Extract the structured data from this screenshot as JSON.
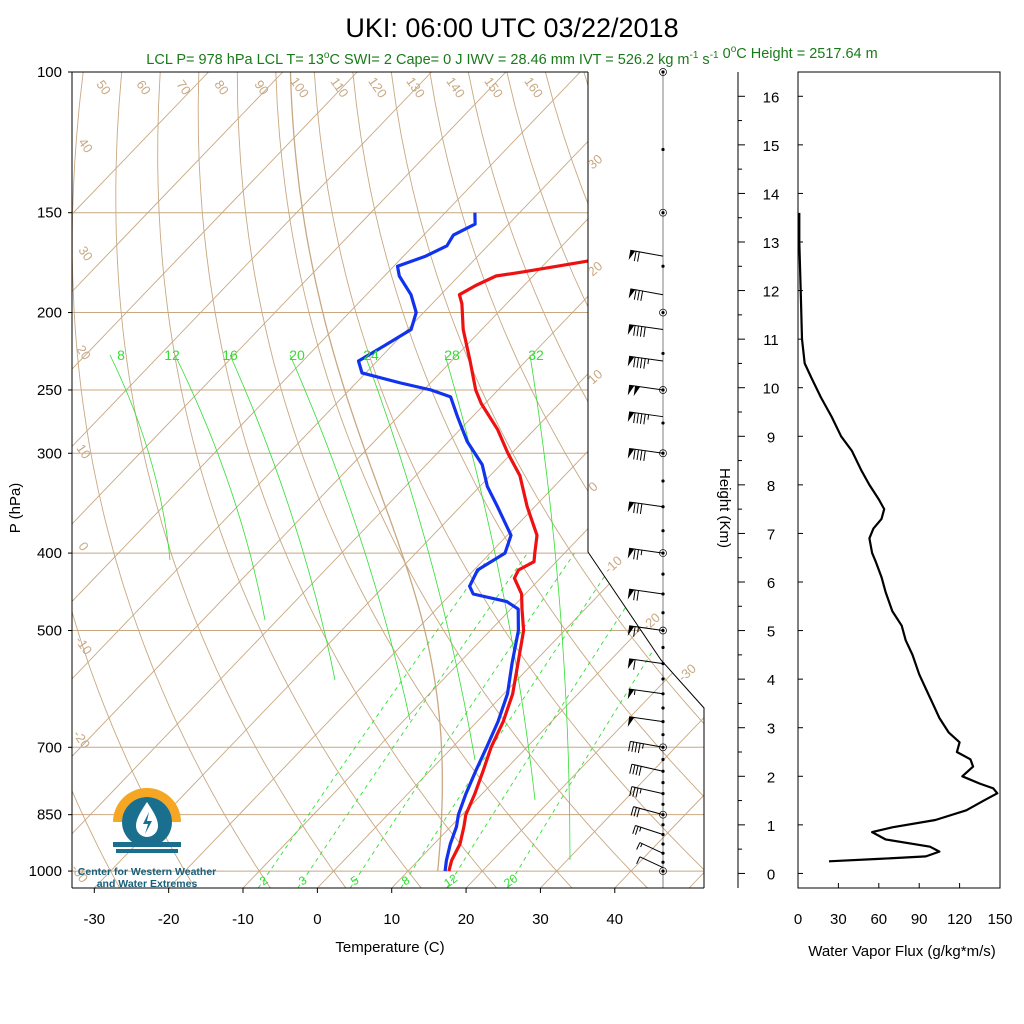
{
  "header": {
    "title": "UKI: 06:00 UTC 03/22/2018",
    "subtitle_parts": [
      {
        "text": "LCL P= 978 hPa"
      },
      {
        "text": "LCL T= 13",
        "sup": "o",
        "after": "C"
      },
      {
        "text": "SWI= 2"
      },
      {
        "text": "Cape= 0 J"
      },
      {
        "text": "IWV = 28.46 mm"
      },
      {
        "text": "IVT = 526.2 kg m",
        "sup": "-1",
        "mid": " s",
        "sup2": "-1"
      },
      {
        "text": "0",
        "sup": "o",
        "after": "C Height = 2517.64 m"
      }
    ]
  },
  "logo": {
    "line1": "Center for Western Weather",
    "line2": "and Water Extremes",
    "colors": {
      "orange": "#f5a623",
      "teal": "#1a6f8f"
    }
  },
  "chart_data": [
    {
      "type": "skew-t",
      "ylabel": "P (hPa)",
      "xlabel": "Temperature (C)",
      "pressure_ticks": [
        100,
        150,
        200,
        250,
        300,
        400,
        500,
        700,
        850,
        1000
      ],
      "temperature_ticks": [
        -30,
        -20,
        -10,
        0,
        10,
        20,
        30,
        40
      ],
      "xlim": [
        -33,
        52
      ],
      "ylim": [
        1050,
        100
      ],
      "dry_adiabat_labels": [
        "50",
        "60",
        "70",
        "80",
        "90",
        "100",
        "110",
        "120",
        "130",
        "140",
        "150",
        "160",
        "40",
        "30",
        "20",
        "10",
        "0",
        "-10",
        "-20",
        "-30"
      ],
      "isotherm_labels": [
        "30",
        "20",
        "10",
        "0",
        "-10",
        "-20",
        "-30"
      ],
      "mixing_ratio_labels_top": [
        "8",
        "12",
        "16",
        "20",
        "24",
        "28",
        "32"
      ],
      "mixing_ratio_labels_bottom": [
        "2",
        "3",
        "5",
        "8",
        "12",
        "20"
      ],
      "colors": {
        "temperature": "#ee1111",
        "dewpoint": "#1133ee",
        "background": "#c8a882",
        "mixing": "#33dd33"
      },
      "temperature_profile": [
        {
          "p": 1000,
          "t": 15.5
        },
        {
          "p": 970,
          "t": 14.5
        },
        {
          "p": 925,
          "t": 13.5
        },
        {
          "p": 880,
          "t": 11.8
        },
        {
          "p": 850,
          "t": 10.5
        },
        {
          "p": 800,
          "t": 9.0
        },
        {
          "p": 750,
          "t": 7.2
        },
        {
          "p": 700,
          "t": 5.2
        },
        {
          "p": 650,
          "t": 3.5
        },
        {
          "p": 600,
          "t": 1.2
        },
        {
          "p": 550,
          "t": -2.0
        },
        {
          "p": 500,
          "t": -5.5
        },
        {
          "p": 470,
          "t": -8.5
        },
        {
          "p": 450,
          "t": -10.5
        },
        {
          "p": 430,
          "t": -13.5
        },
        {
          "p": 420,
          "t": -14.0
        },
        {
          "p": 410,
          "t": -13.0
        },
        {
          "p": 400,
          "t": -14.0
        },
        {
          "p": 380,
          "t": -16.0
        },
        {
          "p": 350,
          "t": -21.0
        },
        {
          "p": 320,
          "t": -26.0
        },
        {
          "p": 300,
          "t": -30.5
        },
        {
          "p": 280,
          "t": -35.0
        },
        {
          "p": 260,
          "t": -40.5
        },
        {
          "p": 250,
          "t": -43.0
        },
        {
          "p": 230,
          "t": -47.5
        },
        {
          "p": 210,
          "t": -52.5
        },
        {
          "p": 195,
          "t": -56.0
        },
        {
          "p": 190,
          "t": -57.5
        },
        {
          "p": 185,
          "t": -56.5
        },
        {
          "p": 180,
          "t": -55.0
        },
        {
          "p": 178,
          "t": -52.0
        },
        {
          "p": 175,
          "t": -48.0
        },
        {
          "p": 172,
          "t": -44.0
        },
        {
          "p": 165,
          "t": -43.5
        },
        {
          "p": 158,
          "t": -42.5
        },
        {
          "p": 150,
          "t": -41.0
        }
      ],
      "dewpoint_profile": [
        {
          "p": 1000,
          "t": 15.0
        },
        {
          "p": 970,
          "t": 13.8
        },
        {
          "p": 925,
          "t": 12.2
        },
        {
          "p": 880,
          "t": 10.8
        },
        {
          "p": 850,
          "t": 9.5
        },
        {
          "p": 800,
          "t": 7.8
        },
        {
          "p": 750,
          "t": 6.2
        },
        {
          "p": 700,
          "t": 4.6
        },
        {
          "p": 650,
          "t": 2.8
        },
        {
          "p": 600,
          "t": 0.5
        },
        {
          "p": 550,
          "t": -2.8
        },
        {
          "p": 500,
          "t": -6.2
        },
        {
          "p": 470,
          "t": -9.0
        },
        {
          "p": 460,
          "t": -11.5
        },
        {
          "p": 450,
          "t": -17.0
        },
        {
          "p": 440,
          "t": -18.5
        },
        {
          "p": 420,
          "t": -19.5
        },
        {
          "p": 400,
          "t": -18.0
        },
        {
          "p": 380,
          "t": -19.5
        },
        {
          "p": 350,
          "t": -25.0
        },
        {
          "p": 330,
          "t": -29.0
        },
        {
          "p": 310,
          "t": -32.5
        },
        {
          "p": 290,
          "t": -37.5
        },
        {
          "p": 270,
          "t": -42.0
        },
        {
          "p": 255,
          "t": -45.5
        },
        {
          "p": 250,
          "t": -49.0
        },
        {
          "p": 245,
          "t": -54.0
        },
        {
          "p": 238,
          "t": -60.5
        },
        {
          "p": 230,
          "t": -62.5
        },
        {
          "p": 220,
          "t": -61.0
        },
        {
          "p": 210,
          "t": -59.5
        },
        {
          "p": 200,
          "t": -61.0
        },
        {
          "p": 190,
          "t": -64.0
        },
        {
          "p": 180,
          "t": -68.0
        },
        {
          "p": 175,
          "t": -69.5
        },
        {
          "p": 170,
          "t": -67.0
        },
        {
          "p": 165,
          "t": -65.5
        },
        {
          "p": 160,
          "t": -66.0
        },
        {
          "p": 155,
          "t": -64.5
        },
        {
          "p": 150,
          "t": -66.0
        }
      ],
      "wind_profile": [
        {
          "p": 990,
          "speed": 10,
          "dir": 220
        },
        {
          "p": 950,
          "speed": 15,
          "dir": 220
        },
        {
          "p": 900,
          "speed": 25,
          "dir": 230
        },
        {
          "p": 850,
          "speed": 30,
          "dir": 235
        },
        {
          "p": 800,
          "speed": 35,
          "dir": 240
        },
        {
          "p": 750,
          "speed": 40,
          "dir": 240
        },
        {
          "p": 700,
          "speed": 45,
          "dir": 245
        },
        {
          "p": 650,
          "speed": 50,
          "dir": 250
        },
        {
          "p": 600,
          "speed": 55,
          "dir": 250
        },
        {
          "p": 550,
          "speed": 60,
          "dir": 250
        },
        {
          "p": 500,
          "speed": 65,
          "dir": 250
        },
        {
          "p": 450,
          "speed": 70,
          "dir": 250
        },
        {
          "p": 400,
          "speed": 75,
          "dir": 250
        },
        {
          "p": 350,
          "speed": 80,
          "dir": 250
        },
        {
          "p": 300,
          "speed": 90,
          "dir": 250
        },
        {
          "p": 270,
          "speed": 95,
          "dir": 250
        },
        {
          "p": 250,
          "speed": 100,
          "dir": 250
        },
        {
          "p": 230,
          "speed": 95,
          "dir": 250
        },
        {
          "p": 210,
          "speed": 90,
          "dir": 250
        },
        {
          "p": 190,
          "speed": 80,
          "dir": 245
        },
        {
          "p": 170,
          "speed": 70,
          "dir": 245
        }
      ]
    },
    {
      "type": "line",
      "xlabel": "Water Vapor Flux (g/kg*m/s)",
      "ylabel": "Height (Km)",
      "xlim": [
        0,
        150
      ],
      "ylim": [
        -0.3,
        16.5
      ],
      "x_ticks": [
        0,
        30,
        60,
        90,
        120,
        150
      ],
      "y_ticks": [
        0,
        1,
        2,
        3,
        4,
        5,
        6,
        7,
        8,
        9,
        10,
        11,
        12,
        13,
        14,
        15,
        16
      ],
      "points": [
        {
          "h": 0.25,
          "f": 23
        },
        {
          "h": 0.3,
          "f": 60
        },
        {
          "h": 0.35,
          "f": 95
        },
        {
          "h": 0.45,
          "f": 105
        },
        {
          "h": 0.55,
          "f": 98
        },
        {
          "h": 0.7,
          "f": 65
        },
        {
          "h": 0.85,
          "f": 55
        },
        {
          "h": 0.95,
          "f": 70
        },
        {
          "h": 1.1,
          "f": 102
        },
        {
          "h": 1.3,
          "f": 125
        },
        {
          "h": 1.5,
          "f": 138
        },
        {
          "h": 1.65,
          "f": 148
        },
        {
          "h": 1.75,
          "f": 145
        },
        {
          "h": 1.85,
          "f": 135
        },
        {
          "h": 2.0,
          "f": 122
        },
        {
          "h": 2.2,
          "f": 130
        },
        {
          "h": 2.35,
          "f": 128
        },
        {
          "h": 2.5,
          "f": 118
        },
        {
          "h": 2.7,
          "f": 120
        },
        {
          "h": 2.9,
          "f": 112
        },
        {
          "h": 3.2,
          "f": 105
        },
        {
          "h": 3.5,
          "f": 100
        },
        {
          "h": 3.8,
          "f": 95
        },
        {
          "h": 4.1,
          "f": 90
        },
        {
          "h": 4.5,
          "f": 85
        },
        {
          "h": 4.8,
          "f": 80
        },
        {
          "h": 5.1,
          "f": 77
        },
        {
          "h": 5.4,
          "f": 70
        },
        {
          "h": 5.8,
          "f": 65
        },
        {
          "h": 6.1,
          "f": 62
        },
        {
          "h": 6.4,
          "f": 58
        },
        {
          "h": 6.6,
          "f": 55
        },
        {
          "h": 6.9,
          "f": 53
        },
        {
          "h": 7.1,
          "f": 56
        },
        {
          "h": 7.3,
          "f": 62
        },
        {
          "h": 7.5,
          "f": 64
        },
        {
          "h": 7.7,
          "f": 60
        },
        {
          "h": 8.0,
          "f": 53
        },
        {
          "h": 8.3,
          "f": 47
        },
        {
          "h": 8.7,
          "f": 40
        },
        {
          "h": 9.0,
          "f": 32
        },
        {
          "h": 9.4,
          "f": 25
        },
        {
          "h": 9.8,
          "f": 17
        },
        {
          "h": 10.2,
          "f": 10
        },
        {
          "h": 10.5,
          "f": 5
        },
        {
          "h": 11.0,
          "f": 3
        },
        {
          "h": 12.0,
          "f": 2
        },
        {
          "h": 13.0,
          "f": 1
        },
        {
          "h": 13.6,
          "f": 1
        }
      ]
    }
  ]
}
